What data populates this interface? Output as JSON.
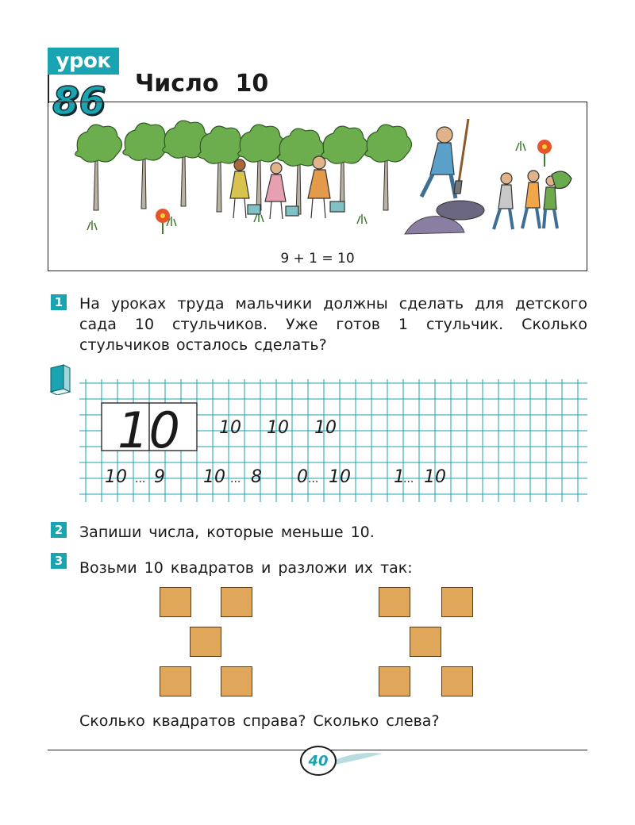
{
  "lesson": {
    "label": "урок",
    "number": "86",
    "title": "Число  10"
  },
  "illustration": {
    "equation": "9 + 1 = 10"
  },
  "tasks": [
    {
      "number": "1",
      "text": "На уроках труда мальчики должны сделать для детского сада 10 стульчиков. Уже готов 1 стульчик. Сколько стульчиков осталось сделать?"
    },
    {
      "number": "2",
      "text": "Запиши числа, которые меньше 10."
    },
    {
      "number": "3",
      "text": "Возьми 10 квадратов и разложи их так:"
    }
  ],
  "copybook": {
    "big_digit": "10",
    "row1": [
      "10",
      "10",
      "10"
    ],
    "row2": [
      {
        "left": "10",
        "right": "9"
      },
      {
        "left": "10",
        "right": "8"
      },
      {
        "left": "0",
        "right": "10"
      },
      {
        "left": "1",
        "right": "10"
      }
    ],
    "blank": "..."
  },
  "question": "Сколько квадратов справа? Сколько слева?",
  "page_number": "40",
  "colors": {
    "accent": "#1aa3b0",
    "square_fill": "#e0a75a",
    "grid": "#1aa3b0"
  },
  "icons": {
    "notebook": "notebook-icon"
  }
}
